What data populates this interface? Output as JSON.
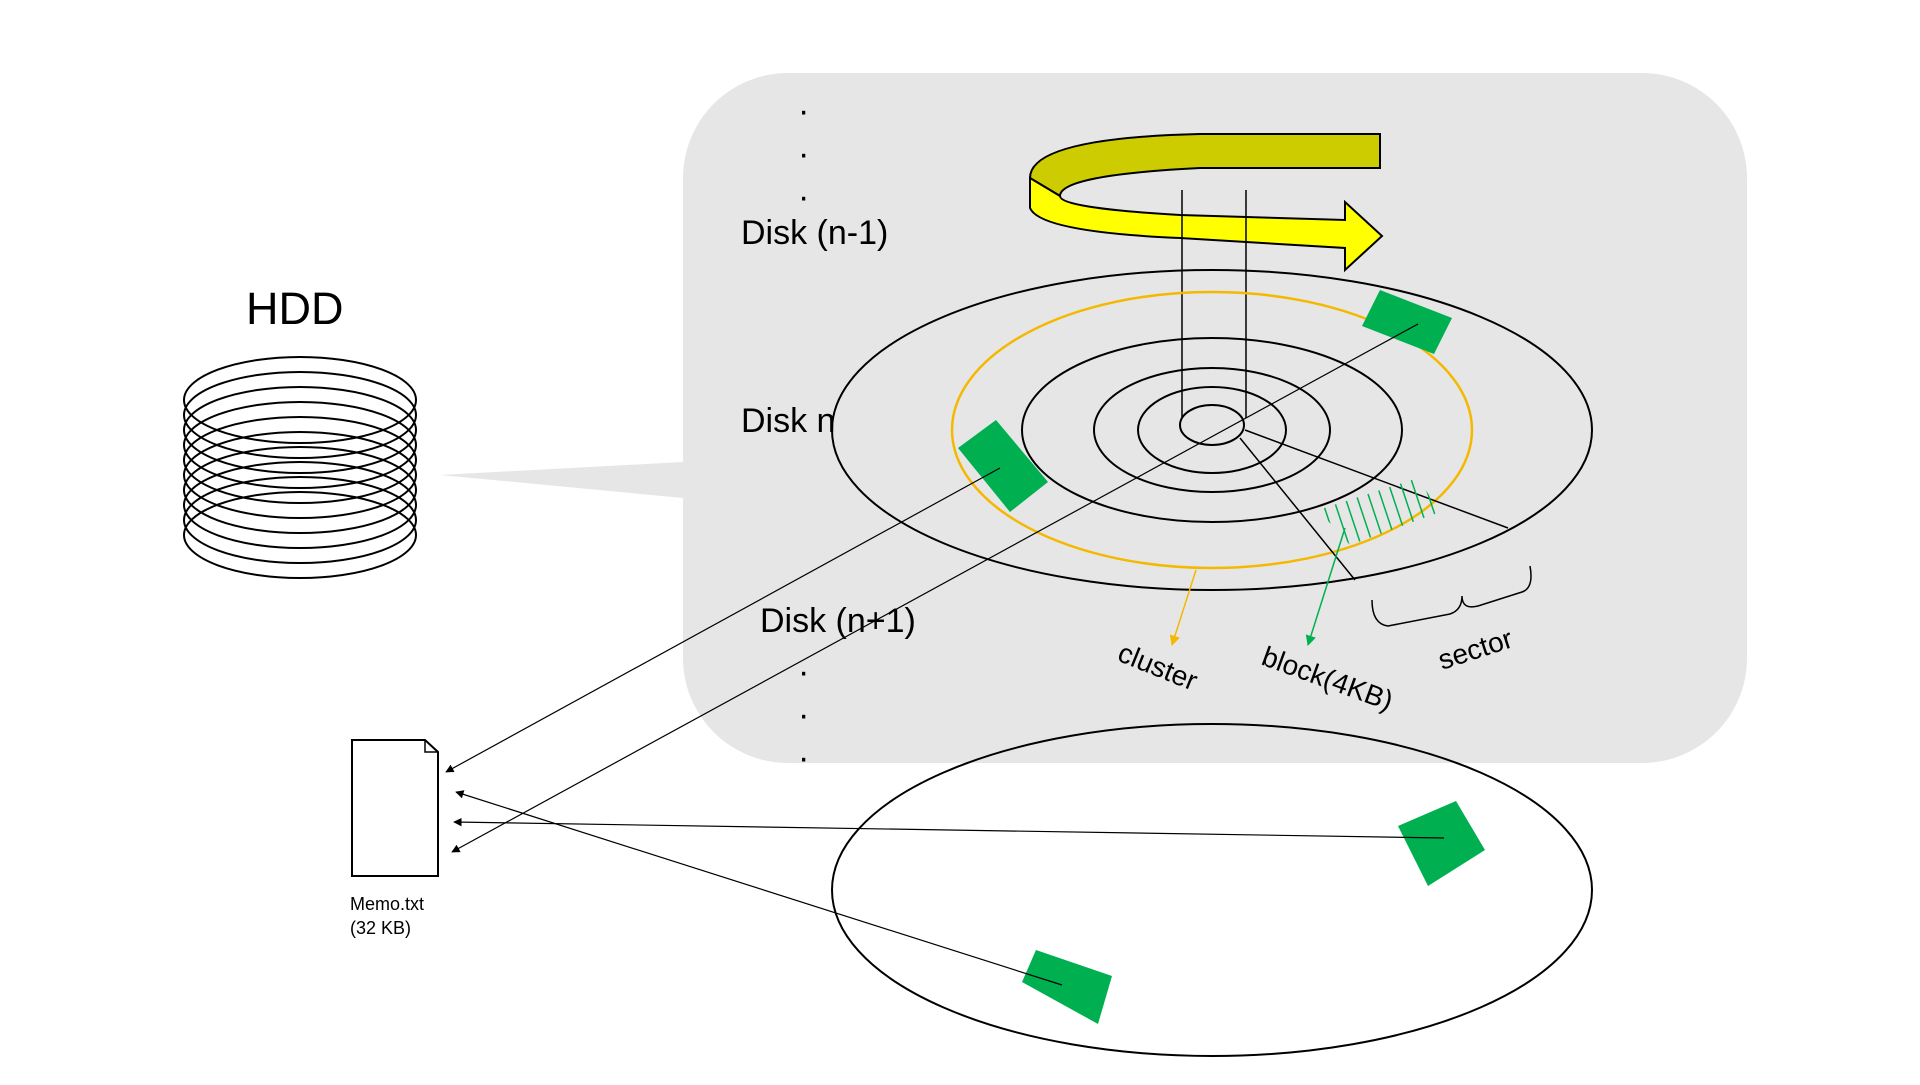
{
  "title": "HDD",
  "disk_labels": {
    "prev": "Disk (n-1)",
    "current": "Disk n",
    "next": "Disk (n+1)"
  },
  "ellipsis_dot": "·",
  "parts": {
    "cluster": "cluster",
    "block": "block(4KB)",
    "sector": "sector"
  },
  "file": {
    "name": "Memo.txt",
    "size": "(32 KB)"
  },
  "colors": {
    "callout_bg": "#e6e6e6",
    "fragment": "#00b050",
    "cluster_ring": "#f5b800",
    "rotation_arrow": "#ffff00",
    "rotation_arrow_dark": "#cccc00",
    "block_hatch": "#00b050"
  }
}
